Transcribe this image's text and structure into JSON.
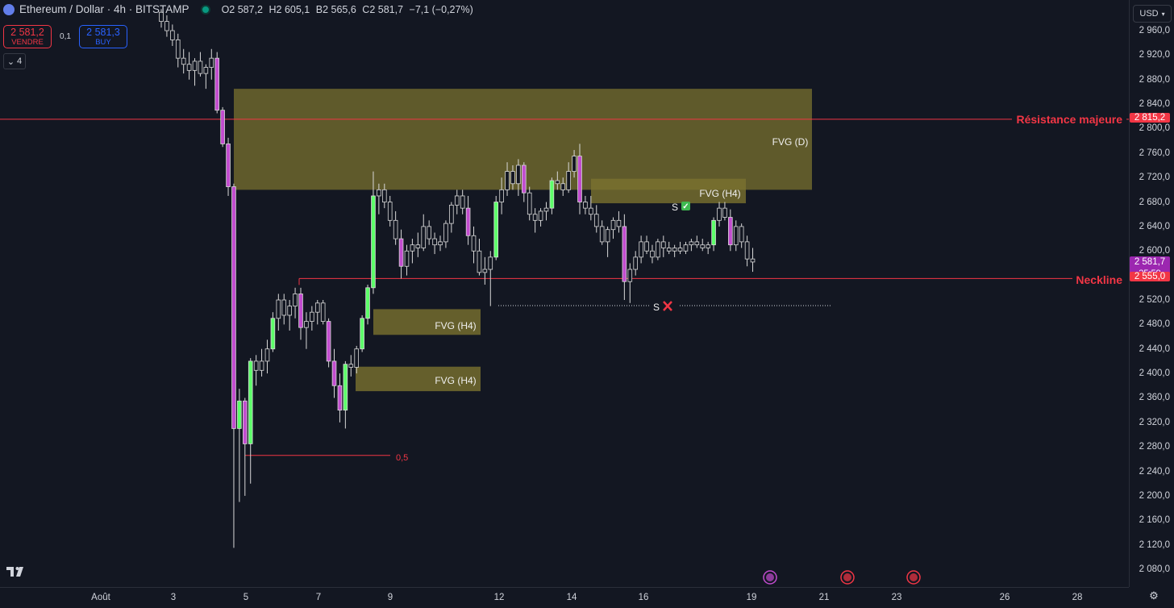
{
  "header": {
    "title": "Ethereum / Dollar · 4h · BITSTAMP",
    "ohlc": [
      {
        "k": "O",
        "v": "2 587,2"
      },
      {
        "k": "H",
        "v": "2 605,1"
      },
      {
        "k": "B",
        "v": "2 565,6"
      },
      {
        "k": "C",
        "v": "2 581,7"
      }
    ],
    "change": "−7,1 (−0,27%)"
  },
  "trade": {
    "sell_price": "2 581,2",
    "sell_label": "VENDRE",
    "spread": "0,1",
    "buy_price": "2 581,3",
    "buy_label": "BUY"
  },
  "indicators_count": "4",
  "currency": "USD",
  "colors": {
    "background": "#131722",
    "up": "#5dff6a",
    "down": "#c24ccf",
    "neutral": "#d9d9d9",
    "zone": "#7a722f",
    "resistance": "#f23645"
  },
  "price_axis": {
    "min": 2060,
    "max": 2980,
    "ticks": [
      "2 960,0",
      "2 920,0",
      "2 880,0",
      "2 840,0",
      "2 800,0",
      "2 760,0",
      "2 720,0",
      "2 680,0",
      "2 640,0",
      "2 600,0",
      "2 560,0",
      "2 520,0",
      "2 480,0",
      "2 440,0",
      "2 400,0",
      "2 360,0",
      "2 320,0",
      "2 280,0",
      "2 240,0",
      "2 200,0",
      "2 160,0",
      "2 120,0",
      "2 080,0"
    ],
    "tick_values": [
      2960,
      2920,
      2880,
      2840,
      2800,
      2760,
      2720,
      2680,
      2640,
      2600,
      2560,
      2520,
      2480,
      2440,
      2400,
      2360,
      2320,
      2280,
      2240,
      2200,
      2160,
      2120,
      2080
    ]
  },
  "time_axis": {
    "labels": [
      "Août",
      "3",
      "5",
      "7",
      "9",
      "12",
      "14",
      "16",
      "19",
      "21",
      "23",
      "26",
      "28"
    ]
  },
  "price_labels": {
    "resistance": "2 815,2",
    "current": "2 581,7",
    "countdown": "35:59",
    "neckline": "2 555,0"
  },
  "annotations": {
    "resistance_label": "Résistance majeure",
    "neckline_label": "Neckline",
    "fvg_d": "FVG (D)",
    "fvg_h4_top": "FVG (H4)",
    "fvg_h4_mid": "FVG (H4)",
    "fvg_h4_low": "FVG (H4)",
    "fib_level": "0,5",
    "s_check": "S",
    "s_cross": "S"
  },
  "chart_data": {
    "type": "candlestick",
    "symbol": "Ethereum / Dollar",
    "interval": "4h",
    "exchange": "BITSTAMP",
    "levels": {
      "resistance": 2815.2,
      "neckline": 2555.0,
      "fib_0_5": 2266
    },
    "zones": [
      {
        "label": "FVG (D)",
        "low": 2700,
        "high": 2865
      },
      {
        "label": "FVG (H4)",
        "low": 2678,
        "high": 2718
      },
      {
        "label": "FVG (H4)",
        "low": 2463,
        "high": 2505
      },
      {
        "label": "FVG (H4)",
        "low": 2371,
        "high": 2411
      }
    ],
    "candles": [
      [
        2990,
        2995,
        2965,
        2975
      ],
      [
        2975,
        2985,
        2950,
        2960
      ],
      [
        2960,
        2970,
        2935,
        2945
      ],
      [
        2945,
        2955,
        2900,
        2915
      ],
      [
        2915,
        2930,
        2890,
        2905
      ],
      [
        2905,
        2925,
        2880,
        2895
      ],
      [
        2895,
        2915,
        2870,
        2910
      ],
      [
        2910,
        2925,
        2885,
        2890
      ],
      [
        2890,
        2905,
        2865,
        2900
      ],
      [
        2900,
        2930,
        2880,
        2915
      ],
      [
        2915,
        2925,
        2825,
        2830
      ],
      [
        2830,
        2835,
        2770,
        2775
      ],
      [
        2775,
        2785,
        2690,
        2705
      ],
      [
        2705,
        2710,
        2115,
        2310
      ],
      [
        2310,
        2375,
        2190,
        2355
      ],
      [
        2355,
        2360,
        2200,
        2285
      ],
      [
        2285,
        2425,
        2220,
        2420
      ],
      [
        2420,
        2430,
        2380,
        2405
      ],
      [
        2405,
        2440,
        2395,
        2420
      ],
      [
        2420,
        2455,
        2400,
        2440
      ],
      [
        2440,
        2500,
        2435,
        2490
      ],
      [
        2490,
        2530,
        2470,
        2520
      ],
      [
        2520,
        2530,
        2480,
        2495
      ],
      [
        2495,
        2520,
        2470,
        2510
      ],
      [
        2510,
        2540,
        2490,
        2530
      ],
      [
        2530,
        2540,
        2455,
        2475
      ],
      [
        2475,
        2500,
        2440,
        2485
      ],
      [
        2485,
        2510,
        2470,
        2500
      ],
      [
        2500,
        2520,
        2480,
        2515
      ],
      [
        2515,
        2520,
        2480,
        2485
      ],
      [
        2485,
        2490,
        2410,
        2420
      ],
      [
        2420,
        2440,
        2360,
        2380
      ],
      [
        2380,
        2400,
        2320,
        2340
      ],
      [
        2340,
        2420,
        2310,
        2415
      ],
      [
        2415,
        2430,
        2395,
        2410
      ],
      [
        2410,
        2445,
        2400,
        2440
      ],
      [
        2440,
        2495,
        2435,
        2490
      ],
      [
        2490,
        2545,
        2480,
        2540
      ],
      [
        2540,
        2730,
        2530,
        2690
      ],
      [
        2690,
        2710,
        2660,
        2700
      ],
      [
        2700,
        2710,
        2670,
        2680
      ],
      [
        2680,
        2690,
        2640,
        2650
      ],
      [
        2650,
        2665,
        2610,
        2620
      ],
      [
        2620,
        2635,
        2555,
        2575
      ],
      [
        2575,
        2610,
        2560,
        2600
      ],
      [
        2600,
        2620,
        2580,
        2610
      ],
      [
        2610,
        2630,
        2590,
        2605
      ],
      [
        2605,
        2660,
        2600,
        2640
      ],
      [
        2640,
        2650,
        2610,
        2620
      ],
      [
        2620,
        2630,
        2595,
        2610
      ],
      [
        2610,
        2625,
        2600,
        2615
      ],
      [
        2615,
        2650,
        2605,
        2645
      ],
      [
        2645,
        2680,
        2630,
        2675
      ],
      [
        2675,
        2700,
        2660,
        2690
      ],
      [
        2690,
        2700,
        2660,
        2670
      ],
      [
        2670,
        2690,
        2610,
        2625
      ],
      [
        2625,
        2640,
        2580,
        2600
      ],
      [
        2600,
        2620,
        2560,
        2565
      ],
      [
        2565,
        2590,
        2545,
        2570
      ],
      [
        2570,
        2600,
        2510,
        2590
      ],
      [
        2590,
        2690,
        2585,
        2680
      ],
      [
        2680,
        2720,
        2660,
        2700
      ],
      [
        2700,
        2745,
        2690,
        2730
      ],
      [
        2730,
        2740,
        2700,
        2710
      ],
      [
        2710,
        2750,
        2690,
        2740
      ],
      [
        2740,
        2745,
        2680,
        2695
      ],
      [
        2695,
        2705,
        2650,
        2660
      ],
      [
        2660,
        2670,
        2630,
        2650
      ],
      [
        2650,
        2670,
        2640,
        2665
      ],
      [
        2665,
        2680,
        2650,
        2670
      ],
      [
        2670,
        2720,
        2660,
        2715
      ],
      [
        2715,
        2730,
        2700,
        2710
      ],
      [
        2710,
        2720,
        2690,
        2700
      ],
      [
        2700,
        2745,
        2695,
        2730
      ],
      [
        2730,
        2765,
        2720,
        2755
      ],
      [
        2755,
        2775,
        2660,
        2680
      ],
      [
        2680,
        2690,
        2660,
        2670
      ],
      [
        2670,
        2690,
        2650,
        2660
      ],
      [
        2660,
        2675,
        2630,
        2640
      ],
      [
        2640,
        2650,
        2610,
        2615
      ],
      [
        2615,
        2640,
        2590,
        2635
      ],
      [
        2635,
        2655,
        2620,
        2650
      ],
      [
        2650,
        2665,
        2630,
        2640
      ],
      [
        2640,
        2660,
        2520,
        2550
      ],
      [
        2550,
        2580,
        2515,
        2570
      ],
      [
        2570,
        2600,
        2560,
        2590
      ],
      [
        2590,
        2625,
        2580,
        2615
      ],
      [
        2615,
        2625,
        2595,
        2600
      ],
      [
        2600,
        2610,
        2580,
        2590
      ],
      [
        2590,
        2620,
        2585,
        2615
      ],
      [
        2615,
        2625,
        2590,
        2605
      ],
      [
        2605,
        2615,
        2595,
        2600
      ],
      [
        2600,
        2610,
        2590,
        2605
      ],
      [
        2605,
        2615,
        2595,
        2600
      ],
      [
        2600,
        2615,
        2595,
        2610
      ],
      [
        2610,
        2620,
        2600,
        2615
      ],
      [
        2615,
        2625,
        2605,
        2610
      ],
      [
        2610,
        2620,
        2600,
        2605
      ],
      [
        2605,
        2615,
        2595,
        2610
      ],
      [
        2610,
        2655,
        2600,
        2650
      ],
      [
        2650,
        2680,
        2640,
        2670
      ],
      [
        2670,
        2680,
        2650,
        2655
      ],
      [
        2655,
        2668,
        2600,
        2610
      ],
      [
        2610,
        2650,
        2600,
        2640
      ],
      [
        2640,
        2645,
        2605,
        2615
      ],
      [
        2615,
        2625,
        2575,
        2587
      ],
      [
        2587,
        2605,
        2566,
        2582
      ]
    ]
  }
}
